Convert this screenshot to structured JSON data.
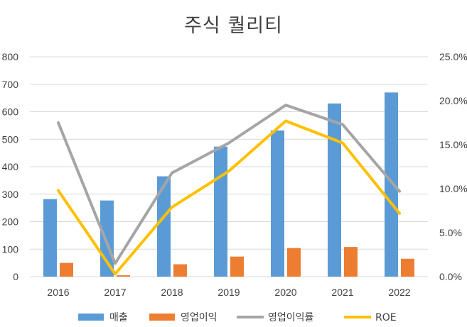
{
  "chart_data": {
    "type": "bar",
    "title": "주식 퀄리티",
    "categories": [
      "2016",
      "2017",
      "2018",
      "2019",
      "2020",
      "2021",
      "2022"
    ],
    "y_left": {
      "ylim": [
        0,
        800
      ],
      "ticks": [
        0,
        100,
        200,
        300,
        400,
        500,
        600,
        700,
        800
      ],
      "tick_labels": [
        "0",
        "100",
        "200",
        "300",
        "400",
        "500",
        "600",
        "700",
        "800"
      ]
    },
    "y_right": {
      "ylim": [
        0,
        25
      ],
      "ticks": [
        0,
        5,
        10,
        15,
        20,
        25
      ],
      "tick_labels": [
        "0.0%",
        "5.0%",
        "10.0%",
        "15.0%",
        "20.0%",
        "25.0%"
      ]
    },
    "grid": true,
    "legend_position": "bottom",
    "series": [
      {
        "name": "매출",
        "kind": "bar",
        "axis": "left",
        "color": "#5B9BD5",
        "values": [
          282,
          277,
          365,
          473,
          532,
          630,
          670
        ]
      },
      {
        "name": "영업이익",
        "kind": "bar",
        "axis": "left",
        "color": "#ED7D31",
        "values": [
          50,
          5,
          45,
          73,
          104,
          108,
          65
        ]
      },
      {
        "name": "영업이익률",
        "kind": "line",
        "axis": "right",
        "color": "#A5A5A5",
        "values": [
          17.5,
          1.5,
          11.8,
          15.2,
          19.5,
          17.3,
          9.7
        ]
      },
      {
        "name": "ROE",
        "kind": "line",
        "axis": "right",
        "color": "#FFC000",
        "values": [
          9.8,
          0.3,
          7.9,
          12.0,
          17.7,
          15.2,
          7.2
        ]
      }
    ]
  }
}
